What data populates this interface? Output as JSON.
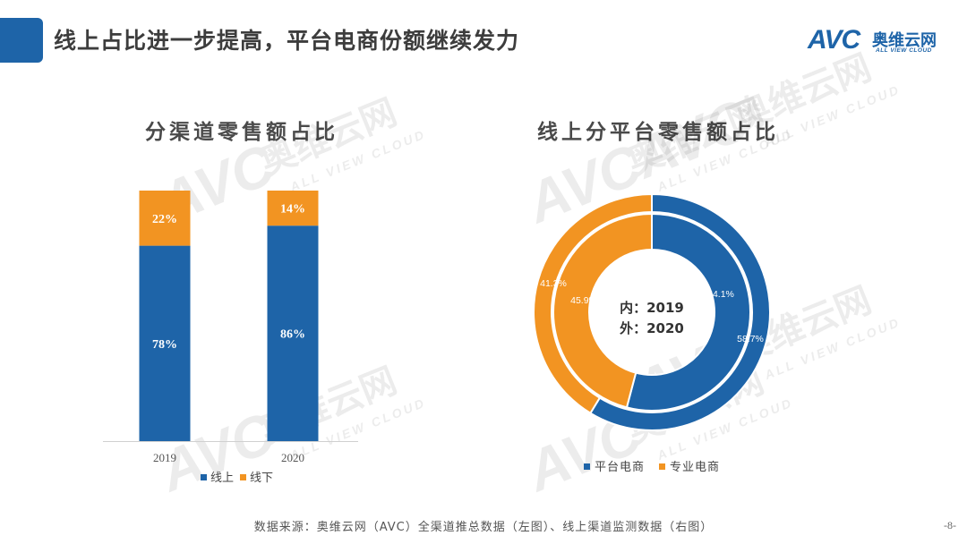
{
  "header": {
    "title": "线上占比进一步提高，平台电商份额继续发力",
    "logo_mark": "AVC",
    "logo_cn": "奥维云网",
    "logo_en": "ALL VIEW CLOUD"
  },
  "chart_data": [
    {
      "type": "bar",
      "stacked": true,
      "title": "分渠道零售额占比",
      "categories": [
        "2019",
        "2020"
      ],
      "series": [
        {
          "name": "线上",
          "values": [
            78,
            86
          ],
          "labels": [
            "78%",
            "86%"
          ],
          "color": "#1e64a8"
        },
        {
          "name": "线下",
          "values": [
            22,
            14
          ],
          "labels": [
            "22%",
            "14%"
          ],
          "color": "#f29422"
        }
      ],
      "ylim": [
        0,
        100
      ],
      "legend": "bottom",
      "grid": false
    },
    {
      "type": "pie",
      "style": "double-ring donut",
      "title": "线上分平台零售额占比",
      "center_lines": [
        "内：2019",
        "外：2020"
      ],
      "rings": [
        {
          "ring": "inner",
          "year": "2019",
          "slices": [
            {
              "name": "平台电商",
              "value": 54.1,
              "label": "54.1%"
            },
            {
              "name": "专业电商",
              "value": 45.9,
              "label": "45.9%"
            }
          ]
        },
        {
          "ring": "outer",
          "year": "2020",
          "slices": [
            {
              "name": "平台电商",
              "value": 58.7,
              "label": "58.7%"
            },
            {
              "name": "专业电商",
              "value": 41.3,
              "label": "41.3%"
            }
          ]
        }
      ],
      "legend": [
        {
          "name": "平台电商",
          "color": "#1e64a8"
        },
        {
          "name": "专业电商",
          "color": "#f29422"
        }
      ]
    }
  ],
  "footer": {
    "source": "数据来源：奥维云网（AVC）全渠道推总数据（左图）、线上渠道监测数据（右图）",
    "page": "-8-"
  }
}
